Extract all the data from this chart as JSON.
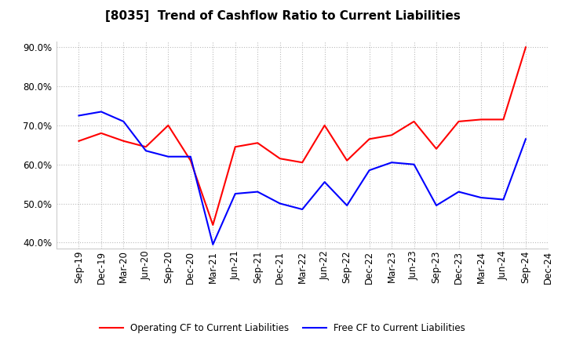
{
  "title": "[8035]  Trend of Cashflow Ratio to Current Liabilities",
  "labels": [
    "Sep-19",
    "Dec-19",
    "Mar-20",
    "Jun-20",
    "Sep-20",
    "Dec-20",
    "Mar-21",
    "Jun-21",
    "Sep-21",
    "Dec-21",
    "Mar-22",
    "Jun-22",
    "Sep-22",
    "Dec-22",
    "Mar-23",
    "Jun-23",
    "Sep-23",
    "Dec-23",
    "Mar-24",
    "Jun-24",
    "Sep-24",
    "Dec-24"
  ],
  "operating_cf": [
    0.66,
    0.68,
    0.66,
    0.645,
    0.7,
    0.61,
    0.445,
    0.645,
    0.655,
    0.615,
    0.605,
    0.7,
    0.61,
    0.665,
    0.675,
    0.71,
    0.64,
    0.71,
    0.715,
    0.715,
    0.9,
    null
  ],
  "free_cf": [
    0.725,
    0.735,
    0.71,
    0.635,
    0.62,
    0.62,
    0.395,
    0.525,
    0.53,
    0.5,
    0.485,
    0.555,
    0.495,
    0.585,
    0.605,
    0.6,
    0.495,
    0.53,
    0.515,
    0.51,
    0.665,
    null
  ],
  "operating_color": "#FF0000",
  "free_color": "#0000FF",
  "ylim": [
    0.385,
    0.915
  ],
  "yticks": [
    0.4,
    0.5,
    0.6,
    0.7,
    0.8,
    0.9
  ],
  "background_color": "#FFFFFF",
  "grid_color": "#BBBBBB",
  "title_fontsize": 11,
  "tick_fontsize": 8.5,
  "legend_fontsize": 8.5
}
